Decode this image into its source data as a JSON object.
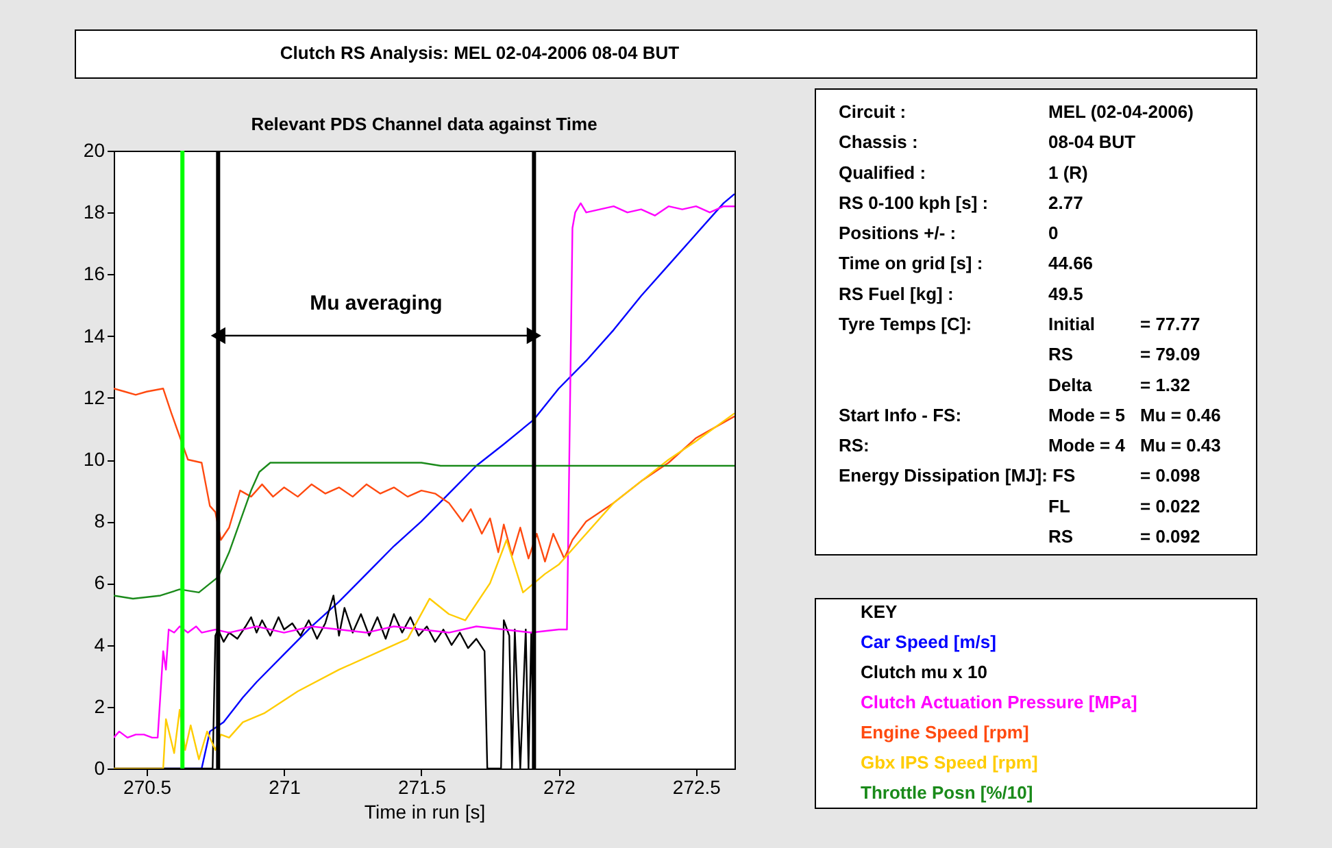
{
  "chart_data": {
    "type": "line",
    "title": "Clutch RS Analysis: MEL 02-04-2006 08-04 BUT",
    "subtitle": "Relevant PDS Channel data against Time",
    "xlabel": "Time in run [s]",
    "legend_title": "KEY",
    "legend": "right",
    "grid": false,
    "marker": "none",
    "line_style": "solid",
    "xlim": [
      270.38,
      272.64
    ],
    "xticks": [
      270.5,
      271,
      271.5,
      272,
      272.5
    ],
    "ylim": [
      0,
      20
    ],
    "yticks": [
      0,
      2,
      4,
      6,
      8,
      10,
      12,
      14,
      16,
      18,
      20
    ],
    "series": [
      {
        "name": "Car Speed [m/s]",
        "color": "#0000ff",
        "x": [
          270.38,
          270.7,
          270.73,
          270.78,
          270.85,
          270.9,
          271.0,
          271.1,
          271.2,
          271.3,
          271.4,
          271.5,
          271.6,
          271.7,
          271.8,
          271.91,
          272.0,
          272.1,
          272.2,
          272.3,
          272.4,
          272.5,
          272.6,
          272.64
        ],
        "values": [
          0,
          0,
          1.2,
          1.5,
          2.3,
          2.8,
          3.7,
          4.6,
          5.4,
          6.3,
          7.2,
          8.0,
          8.9,
          9.8,
          10.5,
          11.3,
          12.3,
          13.2,
          14.2,
          15.3,
          16.3,
          17.3,
          18.3,
          18.6
        ]
      },
      {
        "name": "Clutch mu x 10",
        "color": "#000000",
        "x": [
          270.38,
          270.74,
          270.75,
          270.76,
          270.78,
          270.8,
          270.83,
          270.86,
          270.88,
          270.9,
          270.92,
          270.95,
          270.98,
          271.0,
          271.03,
          271.06,
          271.09,
          271.12,
          271.15,
          271.18,
          271.2,
          271.22,
          271.25,
          271.28,
          271.31,
          271.34,
          271.37,
          271.4,
          271.43,
          271.46,
          271.49,
          271.52,
          271.55,
          271.58,
          271.61,
          271.64,
          271.67,
          271.7,
          271.73,
          271.74,
          271.79,
          271.8,
          271.82,
          271.83,
          271.84,
          271.86,
          271.88,
          271.89,
          271.9,
          271.91
        ],
        "values": [
          0,
          0,
          4.3,
          4.5,
          4.1,
          4.4,
          4.2,
          4.6,
          4.9,
          4.4,
          4.8,
          4.3,
          4.9,
          4.5,
          4.7,
          4.3,
          4.8,
          4.2,
          4.7,
          5.6,
          4.3,
          5.2,
          4.4,
          5.0,
          4.3,
          4.9,
          4.2,
          5.0,
          4.4,
          4.9,
          4.3,
          4.6,
          4.1,
          4.5,
          4.0,
          4.4,
          3.9,
          4.2,
          3.8,
          0,
          0,
          4.8,
          4.3,
          0,
          4.5,
          0,
          4.5,
          0,
          4.4,
          0
        ]
      },
      {
        "name": "Clutch Actuation Pressure [MPa]",
        "color": "#ff00ff",
        "x": [
          270.38,
          270.4,
          270.43,
          270.46,
          270.49,
          270.52,
          270.54,
          270.56,
          270.57,
          270.58,
          270.6,
          270.62,
          270.65,
          270.68,
          270.7,
          270.75,
          270.8,
          270.9,
          271.0,
          271.1,
          271.2,
          271.3,
          271.4,
          271.5,
          271.6,
          271.7,
          271.8,
          271.9,
          272.0,
          272.03,
          272.05,
          272.06,
          272.08,
          272.1,
          272.15,
          272.2,
          272.25,
          272.3,
          272.35,
          272.4,
          272.45,
          272.5,
          272.55,
          272.6,
          272.64
        ],
        "values": [
          1.0,
          1.2,
          1.0,
          1.1,
          1.1,
          1.0,
          1.0,
          3.8,
          3.2,
          4.5,
          4.4,
          4.6,
          4.4,
          4.6,
          4.4,
          4.5,
          4.4,
          4.6,
          4.4,
          4.6,
          4.5,
          4.4,
          4.6,
          4.5,
          4.4,
          4.6,
          4.5,
          4.4,
          4.5,
          4.5,
          17.5,
          18.0,
          18.3,
          18.0,
          18.1,
          18.2,
          18.0,
          18.1,
          17.9,
          18.2,
          18.1,
          18.2,
          18.0,
          18.2,
          18.2
        ]
      },
      {
        "name": "Engine Speed [rpm]",
        "color": "#ff4a10",
        "x": [
          270.38,
          270.42,
          270.46,
          270.5,
          270.56,
          270.59,
          270.63,
          270.65,
          270.7,
          270.73,
          270.75,
          270.77,
          270.8,
          270.84,
          270.88,
          270.92,
          270.96,
          271.0,
          271.05,
          271.1,
          271.15,
          271.2,
          271.25,
          271.3,
          271.35,
          271.4,
          271.45,
          271.5,
          271.55,
          271.6,
          271.65,
          271.68,
          271.72,
          271.75,
          271.78,
          271.8,
          271.83,
          271.86,
          271.89,
          271.92,
          271.95,
          271.98,
          272.02,
          272.05,
          272.1,
          272.2,
          272.3,
          272.4,
          272.5,
          272.64
        ],
        "values": [
          12.3,
          12.2,
          12.1,
          12.2,
          12.3,
          11.5,
          10.5,
          10.0,
          9.9,
          8.5,
          8.3,
          7.4,
          7.8,
          9.0,
          8.8,
          9.2,
          8.8,
          9.1,
          8.8,
          9.2,
          8.9,
          9.1,
          8.8,
          9.2,
          8.9,
          9.1,
          8.8,
          9.0,
          8.9,
          8.6,
          8.0,
          8.4,
          7.6,
          8.1,
          7.0,
          7.9,
          6.9,
          7.8,
          6.8,
          7.6,
          6.7,
          7.6,
          6.8,
          7.4,
          8.0,
          8.6,
          9.3,
          9.9,
          10.7,
          11.4
        ]
      },
      {
        "name": "Gbx IPS Speed [rpm]",
        "color": "#ffcc00",
        "x": [
          270.38,
          270.56,
          270.57,
          270.6,
          270.62,
          270.64,
          270.66,
          270.69,
          270.72,
          270.75,
          270.77,
          270.8,
          270.85,
          270.93,
          271.05,
          271.2,
          271.35,
          271.45,
          271.53,
          271.6,
          271.66,
          271.75,
          271.81,
          271.87,
          271.95,
          272.0,
          272.08,
          272.2,
          272.3,
          272.4,
          272.5,
          272.64
        ],
        "values": [
          0,
          0,
          1.6,
          0.5,
          1.9,
          0.6,
          1.4,
          0.3,
          1.2,
          0.6,
          1.1,
          1.0,
          1.5,
          1.8,
          2.5,
          3.2,
          3.8,
          4.2,
          5.5,
          5.0,
          4.8,
          6.0,
          7.4,
          5.7,
          6.3,
          6.6,
          7.4,
          8.6,
          9.3,
          10.0,
          10.6,
          11.5
        ]
      },
      {
        "name": "Throttle Posn [%/10]",
        "color": "#1a8a1a",
        "x": [
          270.38,
          270.45,
          270.55,
          270.62,
          270.69,
          270.76,
          270.8,
          270.84,
          270.88,
          270.91,
          270.95,
          271.5,
          271.57,
          272.64
        ],
        "values": [
          5.6,
          5.5,
          5.6,
          5.8,
          5.7,
          6.2,
          7.0,
          8.0,
          9.0,
          9.6,
          9.9,
          9.9,
          9.8,
          9.8
        ]
      }
    ],
    "ref_lines": [
      {
        "axis": "x",
        "value": 270.63,
        "color": "#00ff00",
        "line_style": "solid"
      },
      {
        "axis": "x",
        "value": 270.76,
        "color": "#000000",
        "line_style": "solid"
      },
      {
        "axis": "x",
        "value": 271.91,
        "color": "#000000",
        "line_style": "solid"
      }
    ],
    "annotations": [
      "Mu averaging",
      "Circuit :\tMEL (02-04-2006)",
      "Chassis :\t08-04 BUT",
      "Qualified :\t1 (R)",
      "RS 0-100 kph [s] :\t2.77",
      "Positions +/- :\t0",
      "Time on grid [s] :\t44.66",
      "RS Fuel [kg] :\t49.5",
      "Tyre Temps [C]:\tInitial\t= 77.77",
      "\tRS\t= 79.09",
      "\tDelta\t= 1.32",
      "Start Info - FS:\tMode = 5\tMu = 0.46",
      "RS:\tMode = 4\tMu = 0.43",
      "Energy Dissipation [MJ]: FS\t\t= 0.098",
      "\tFL\t= 0.022",
      "\tRS\t= 0.092"
    ]
  }
}
